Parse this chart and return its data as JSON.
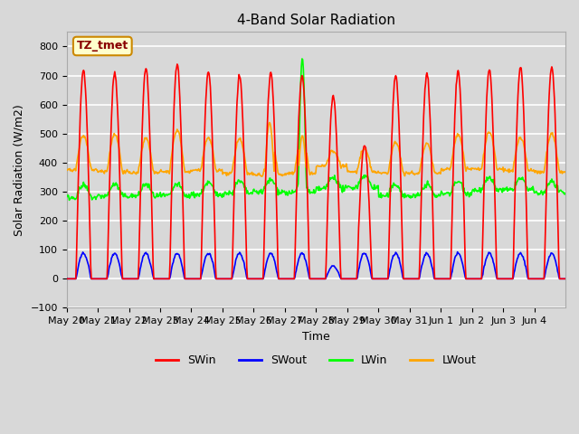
{
  "title": "4-Band Solar Radiation",
  "xlabel": "Time",
  "ylabel": "Solar Radiation (W/m2)",
  "ylim": [
    -100,
    850
  ],
  "yticks": [
    -100,
    0,
    100,
    200,
    300,
    400,
    500,
    600,
    700,
    800
  ],
  "xtick_labels": [
    "May 20",
    "May 21",
    "May 22",
    "May 23",
    "May 24",
    "May 25",
    "May 26",
    "May 27",
    "May 28",
    "May 29",
    "May 30",
    "May 31",
    "Jun 1",
    "Jun 2",
    "Jun 3",
    "Jun 4"
  ],
  "legend_labels": [
    "SWin",
    "SWout",
    "LWin",
    "LWout"
  ],
  "legend_colors": [
    "#ff0000",
    "#0000ff",
    "#00ff00",
    "#ffa500"
  ],
  "annotation_text": "TZ_tmet",
  "annotation_box_color": "#ffffcc",
  "annotation_border_color": "#cc8800",
  "n_days": 16,
  "points_per_day": 48
}
